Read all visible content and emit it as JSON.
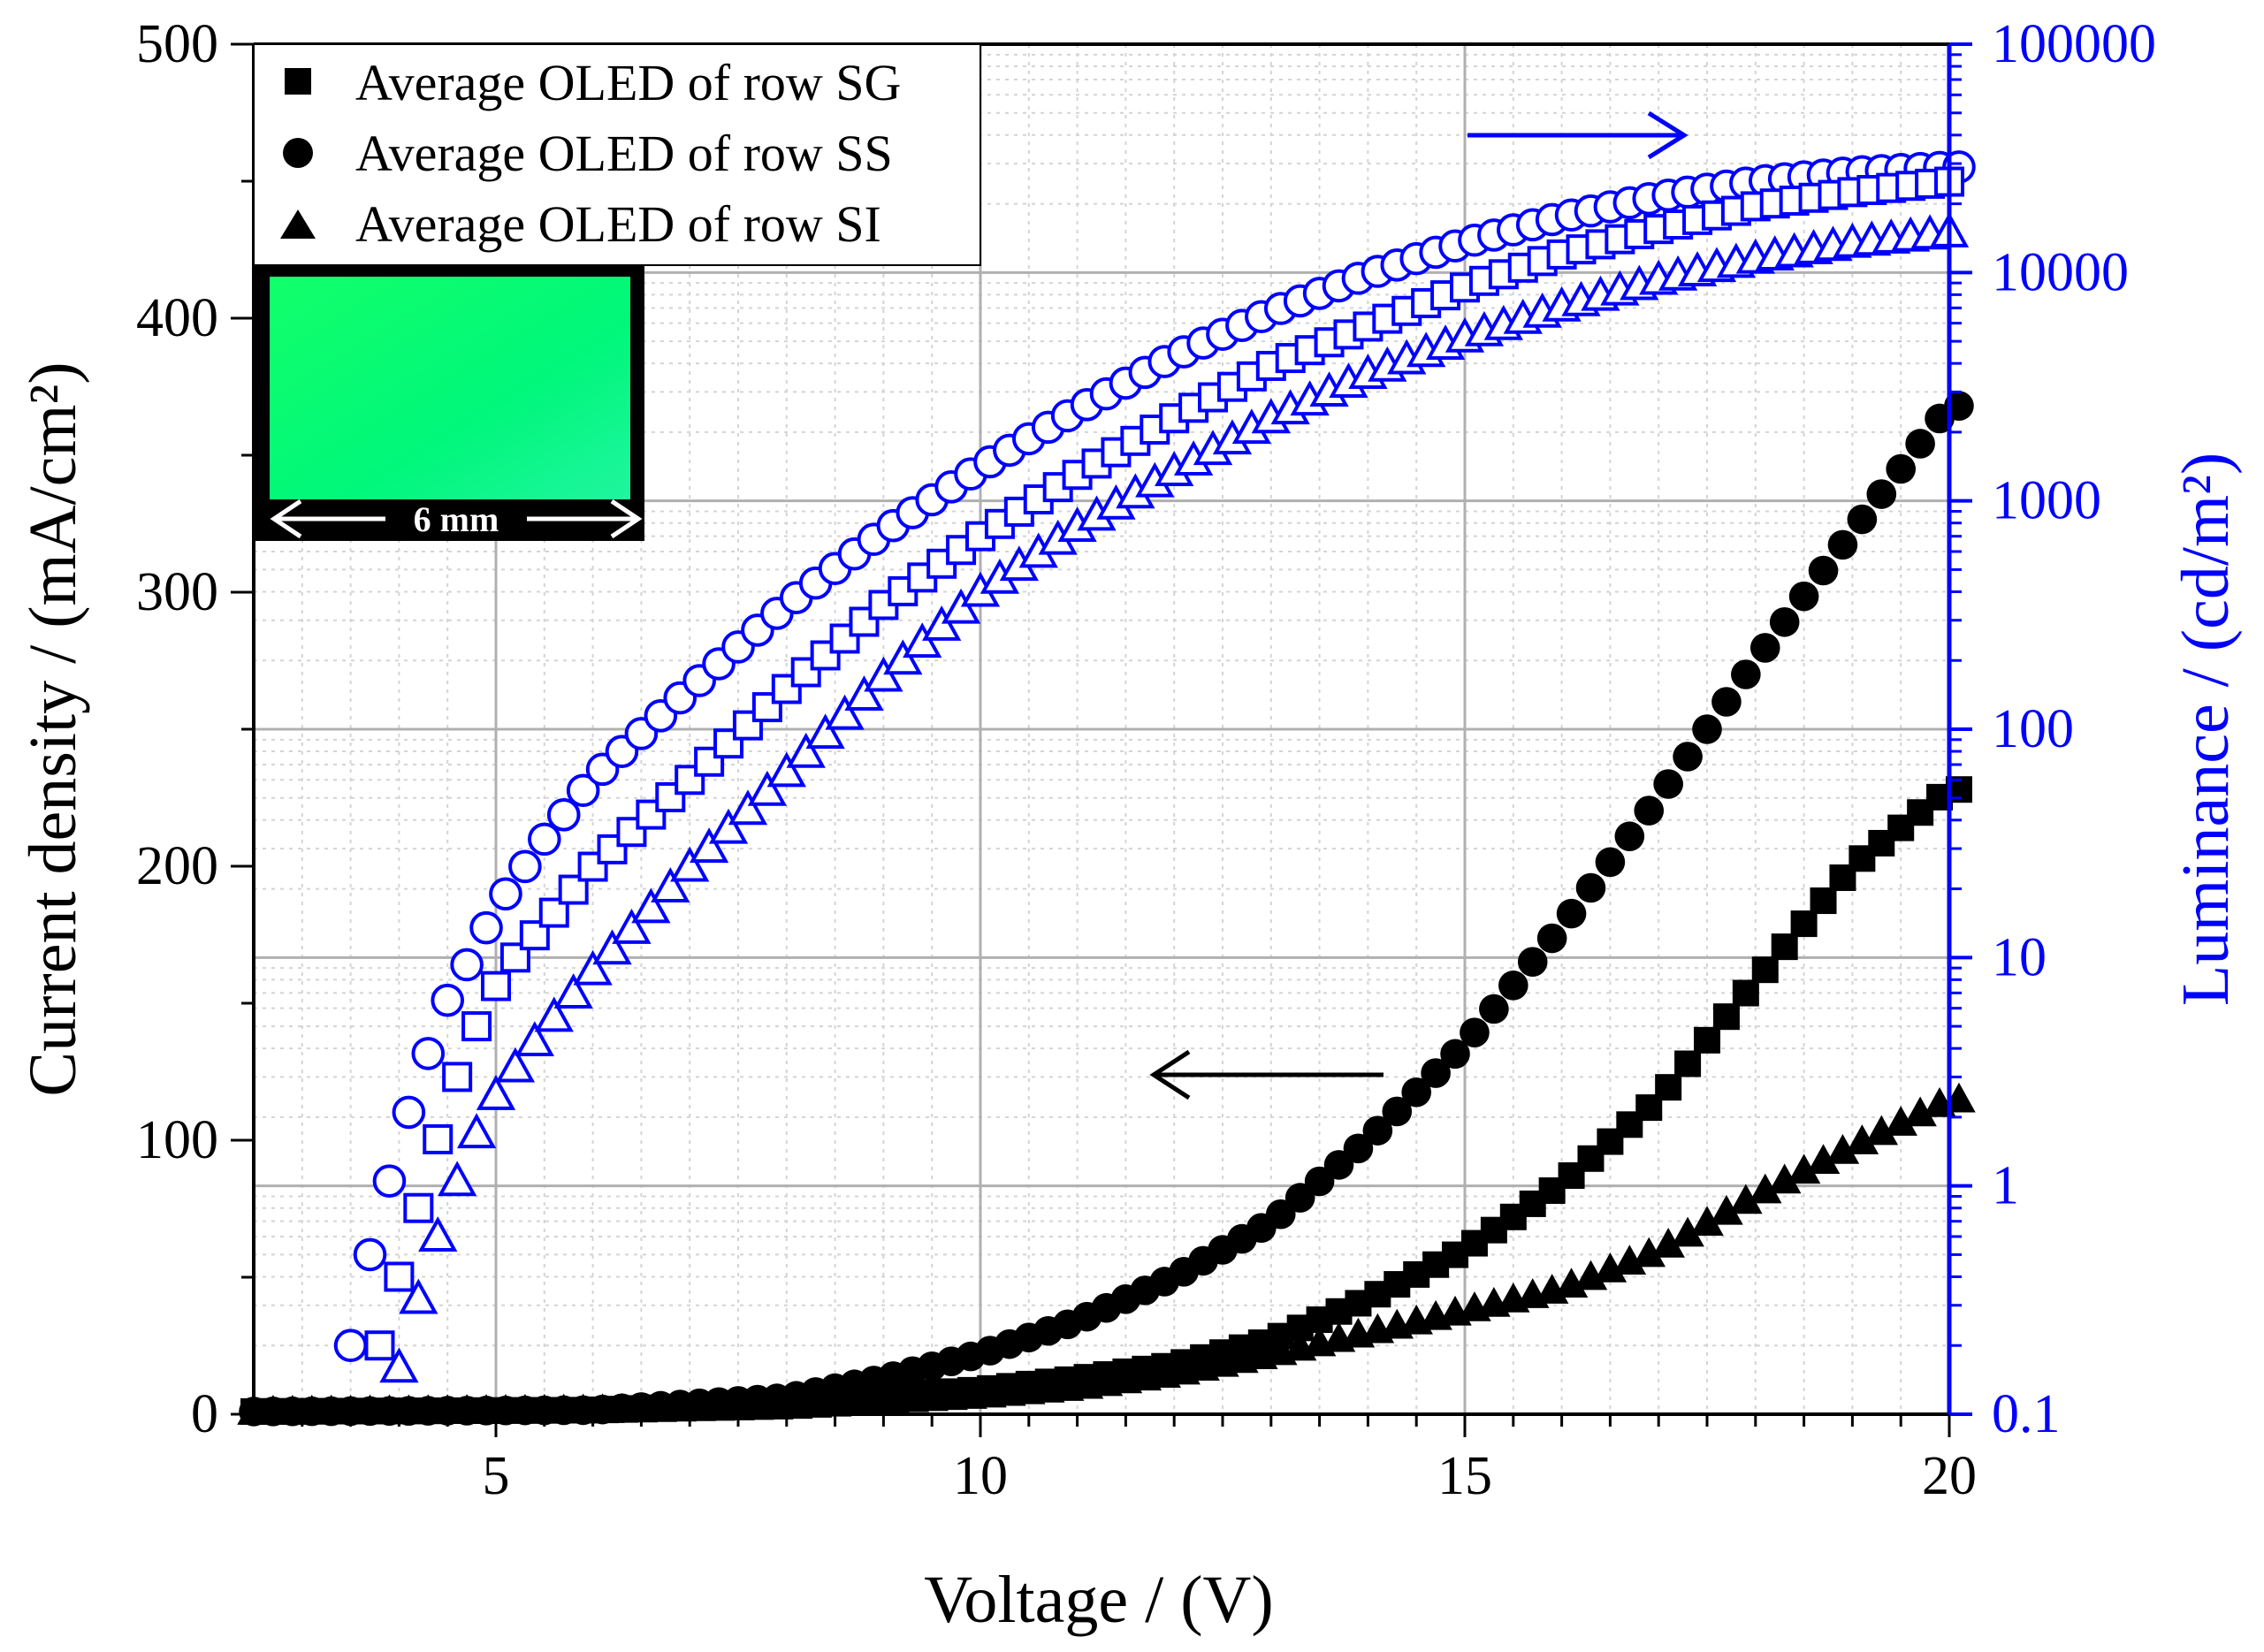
{
  "chart_data": {
    "type": "scatter",
    "title": "",
    "xlabel": "Voltage / (V)",
    "ylabel": "Current density / (mA/cm²)",
    "ylabel_right": "Luminance / (cd/m²)",
    "xlim": [
      2.5,
      20
    ],
    "ylim": [
      0,
      500
    ],
    "ylim_right": [
      0.1,
      100000
    ],
    "y_right_scale": "log",
    "x_ticks": [
      5,
      10,
      15,
      20
    ],
    "x_tick_labels": [
      "5",
      "10",
      "15",
      "20"
    ],
    "y_ticks": [
      0,
      100,
      200,
      300,
      400,
      500
    ],
    "y_tick_labels": [
      "0",
      "100",
      "200",
      "300",
      "400",
      "500"
    ],
    "y_right_ticks": [
      0.1,
      1,
      10,
      100,
      1000,
      10000,
      100000
    ],
    "y_right_tick_labels": [
      "0.1",
      "1",
      "10",
      "100",
      "1000",
      "10000",
      "100000"
    ],
    "grid": true,
    "legend_position": "top-left",
    "legend": [
      {
        "label": "Average OLED of row SG",
        "marker": "square"
      },
      {
        "label": "Average OLED of row SS",
        "marker": "circle"
      },
      {
        "label": "Average OLED of row SI",
        "marker": "triangle"
      }
    ],
    "current_density": {
      "x_start": 2.5,
      "x_end": 20,
      "x_step": 0.2,
      "series": [
        {
          "name": "Average OLED of row SG",
          "marker": "square",
          "color": "#000000",
          "points": [
            [
              2.5,
              1
            ],
            [
              6,
              1.5
            ],
            [
              8,
              4
            ],
            [
              10,
              9
            ],
            [
              11,
              13
            ],
            [
              12,
              18
            ],
            [
              13,
              27
            ],
            [
              14,
              42
            ],
            [
              15,
              60
            ],
            [
              16,
              84
            ],
            [
              17,
              115
            ],
            [
              18,
              158
            ],
            [
              19,
              200
            ],
            [
              20,
              228
            ]
          ]
        },
        {
          "name": "Average OLED of row SS",
          "marker": "circle",
          "color": "#000000",
          "points": [
            [
              2.5,
              1
            ],
            [
              6,
              1.5
            ],
            [
              8,
              6
            ],
            [
              9,
              13
            ],
            [
              10,
              22
            ],
            [
              11,
              34
            ],
            [
              12,
              50
            ],
            [
              13,
              70
            ],
            [
              14,
              100
            ],
            [
              15,
              135
            ],
            [
              16,
              178
            ],
            [
              17,
              225
            ],
            [
              18,
              275
            ],
            [
              19,
              322
            ],
            [
              20,
              368
            ]
          ]
        },
        {
          "name": "Average OLED of row SI",
          "marker": "triangle",
          "color": "#000000",
          "points": [
            [
              2.5,
              1
            ],
            [
              6,
              1.5
            ],
            [
              8,
              3
            ],
            [
              10,
              7
            ],
            [
              11,
              10
            ],
            [
              12,
              15
            ],
            [
              13,
              22
            ],
            [
              14,
              30
            ],
            [
              15,
              38
            ],
            [
              16,
              46
            ],
            [
              17,
              60
            ],
            [
              18,
              80
            ],
            [
              19,
              98
            ],
            [
              20,
              115
            ]
          ]
        }
      ]
    },
    "luminance": {
      "x_step": 0.2,
      "series": [
        {
          "name": "Average OLED of row SS",
          "marker": "circle",
          "color": "#0000ff",
          "points": [
            [
              3.5,
              0.2
            ],
            [
              3.7,
              0.5
            ],
            [
              3.9,
              1.05
            ],
            [
              4.1,
              2.1
            ],
            [
              4.3,
              3.8
            ],
            [
              4.5,
              6.5
            ],
            [
              4.7,
              9.3
            ],
            [
              4.9,
              13.5
            ],
            [
              5.1,
              19
            ],
            [
              5.5,
              33
            ],
            [
              6,
              61
            ],
            [
              7,
              150
            ],
            [
              8,
              350
            ],
            [
              9,
              730
            ],
            [
              10,
              1400
            ],
            [
              11,
              2500
            ],
            [
              12,
              4300
            ],
            [
              13,
              6700
            ],
            [
              14,
              9800
            ],
            [
              15,
              13500
            ],
            [
              16,
              17500
            ],
            [
              17,
              21500
            ],
            [
              18,
              25000
            ],
            [
              19,
              27500
            ],
            [
              20,
              29000
            ]
          ]
        },
        {
          "name": "Average OLED of row SG",
          "marker": "square",
          "color": "#0000ff",
          "points": [
            [
              3.8,
              0.2
            ],
            [
              4.0,
              0.4
            ],
            [
              4.2,
              0.8
            ],
            [
              4.4,
              1.6
            ],
            [
              4.6,
              3
            ],
            [
              4.8,
              5
            ],
            [
              5.0,
              7.5
            ],
            [
              5.2,
              10
            ],
            [
              5.5,
              14
            ],
            [
              6,
              25
            ],
            [
              7,
              60
            ],
            [
              8,
              150
            ],
            [
              9,
              350
            ],
            [
              10,
              700
            ],
            [
              11,
              1300
            ],
            [
              12,
              2300
            ],
            [
              13,
              3900
            ],
            [
              14,
              5800
            ],
            [
              15,
              8600
            ],
            [
              16,
              12000
            ],
            [
              17,
              15500
            ],
            [
              18,
              19500
            ],
            [
              19,
              22500
            ],
            [
              20,
              25000
            ]
          ]
        },
        {
          "name": "Average OLED of row SI",
          "marker": "triangle",
          "color": "#0000ff",
          "points": [
            [
              4.0,
              0.16
            ],
            [
              4.2,
              0.32
            ],
            [
              4.4,
              0.6
            ],
            [
              4.6,
              1.05
            ],
            [
              4.8,
              1.7
            ],
            [
              5.0,
              2.5
            ],
            [
              5.3,
              3.8
            ],
            [
              5.6,
              5.5
            ],
            [
              6,
              8.8
            ],
            [
              7,
              25
            ],
            [
              8,
              65
            ],
            [
              9,
              170
            ],
            [
              10,
              400
            ],
            [
              11,
              770
            ],
            [
              12,
              1350
            ],
            [
              13,
              2300
            ],
            [
              14,
              3600
            ],
            [
              15,
              5200
            ],
            [
              16,
              7100
            ],
            [
              17,
              9300
            ],
            [
              18,
              11500
            ],
            [
              19,
              13500
            ],
            [
              20,
              15000
            ]
          ]
        }
      ]
    },
    "annotations": [
      {
        "text": "arrow pointing right toward luminance axis",
        "color": "#0000ff"
      },
      {
        "text": "arrow pointing left toward current density axis",
        "color": "#000000"
      }
    ],
    "inset": {
      "label": "6 mm",
      "color": "#00ff73"
    }
  },
  "colors": {
    "black": "#000000",
    "blue": "#0000ff",
    "grid_major": "#b0b0b0",
    "grid_minor": "#d4d4d4",
    "inset_green": "#00ff73"
  }
}
